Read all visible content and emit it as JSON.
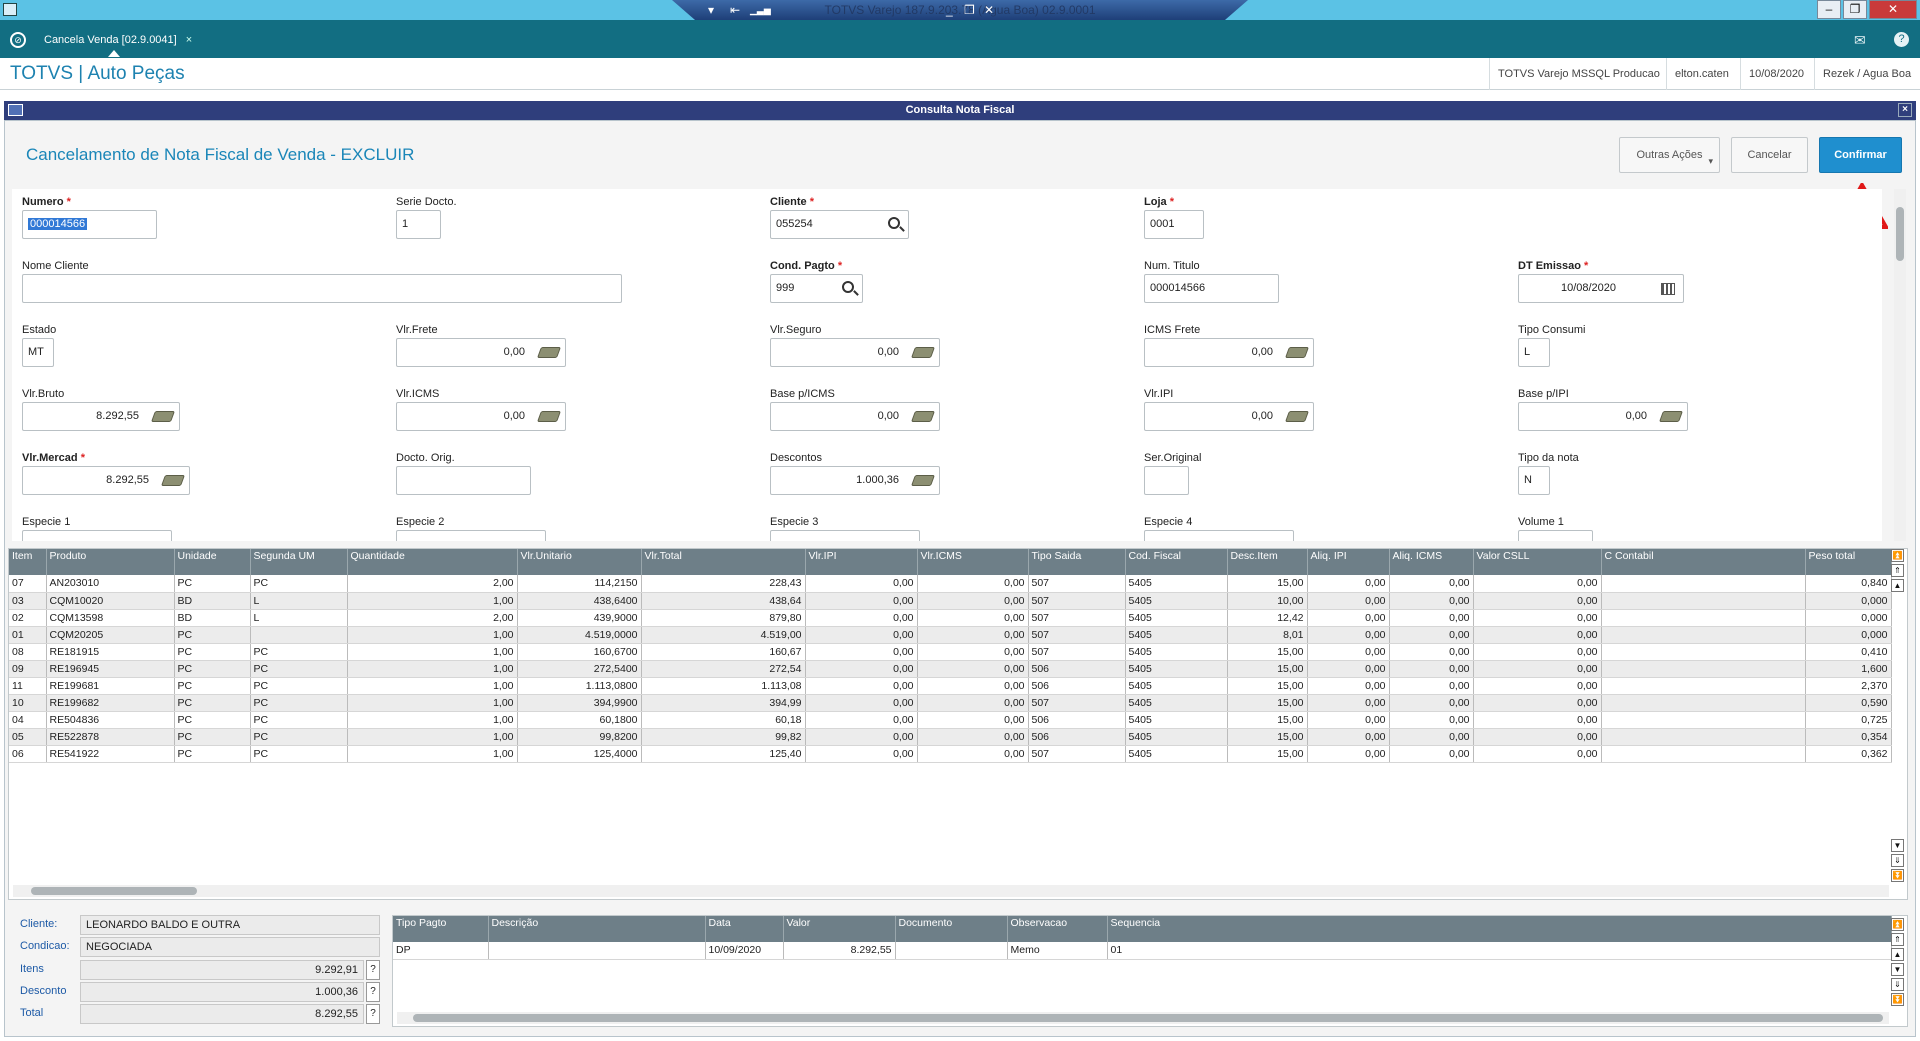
{
  "window": {
    "center_title": "TOTVS Varejo 187.9.203.78 (Agua Boa) 02.9.0001",
    "min_label": "_",
    "restore_label": "❐",
    "close_label": "✕",
    "right_min": "–",
    "right_restore": "❐",
    "right_close": "✕"
  },
  "tabbar": {
    "tab_label": "Cancela Venda [02.9.0041]",
    "tab_close": "×",
    "mail_icon": "✉",
    "help_icon": "?"
  },
  "header": {
    "app_title": "TOTVS | Auto Peças",
    "env": "TOTVS Varejo MSSQL Producao",
    "user": "elton.caten",
    "date": "10/08/2020",
    "branch": "Rezek / Agua Boa"
  },
  "dialog": {
    "title": "Consulta Nota Fiscal",
    "close": "×",
    "operation_title": "Cancelamento de Nota Fiscal de Venda - EXCLUIR",
    "btn_other": "Outras Ações",
    "btn_cancel": "Cancelar",
    "btn_confirm": "Confirmar"
  },
  "form": {
    "numero": {
      "label": "Numero",
      "value": "000014566"
    },
    "serie": {
      "label": "Serie Docto.",
      "value": "1"
    },
    "cliente": {
      "label": "Cliente",
      "value": "055254"
    },
    "loja": {
      "label": "Loja",
      "value": "0001"
    },
    "nome_cliente": {
      "label": "Nome Cliente",
      "value": ""
    },
    "cond_pagto": {
      "label": "Cond. Pagto",
      "value": "999"
    },
    "num_titulo": {
      "label": "Num. Titulo",
      "value": "000014566"
    },
    "dt_emissao": {
      "label": "DT Emissao",
      "value": "10/08/2020"
    },
    "estado": {
      "label": "Estado",
      "value": "MT"
    },
    "vlr_frete": {
      "label": "Vlr.Frete",
      "value": "0,00"
    },
    "vlr_seguro": {
      "label": "Vlr.Seguro",
      "value": "0,00"
    },
    "icms_frete": {
      "label": "ICMS Frete",
      "value": "0,00"
    },
    "tipo_consumi": {
      "label": "Tipo Consumi",
      "value": "L"
    },
    "vlr_bruto": {
      "label": "Vlr.Bruto",
      "value": "8.292,55"
    },
    "vlr_icms": {
      "label": "Vlr.ICMS",
      "value": "0,00"
    },
    "base_icms": {
      "label": "Base p/ICMS",
      "value": "0,00"
    },
    "vlr_ipi": {
      "label": "Vlr.IPI",
      "value": "0,00"
    },
    "base_ipi": {
      "label": "Base p/IPI",
      "value": "0,00"
    },
    "vlr_mercad": {
      "label": "Vlr.Mercad",
      "value": "8.292,55"
    },
    "docto_orig": {
      "label": "Docto. Orig.",
      "value": ""
    },
    "descontos": {
      "label": "Descontos",
      "value": "1.000,36"
    },
    "ser_original": {
      "label": "Ser.Original",
      "value": ""
    },
    "tipo_nota": {
      "label": "Tipo da nota",
      "value": "N"
    },
    "especie1": {
      "label": "Especie 1"
    },
    "especie2": {
      "label": "Especie 2"
    },
    "especie3": {
      "label": "Especie 3"
    },
    "especie4": {
      "label": "Especie 4"
    },
    "volume1": {
      "label": "Volume 1"
    }
  },
  "items_grid": {
    "columns": [
      "Item",
      "Produto",
      "Unidade",
      "Segunda UM",
      "Quantidade",
      "Vlr.Unitario",
      "Vlr.Total",
      "Vlr.IPI",
      "Vlr.ICMS",
      "Tipo Saida",
      "Cod. Fiscal",
      "Desc.Item",
      "Aliq. IPI",
      "Aliq. ICMS",
      "Valor CSLL",
      "C Contabil",
      "Peso total"
    ],
    "rows": [
      [
        "07",
        "AN203010",
        "PC",
        "PC",
        "2,00",
        "114,2150",
        "228,43",
        "0,00",
        "0,00",
        "507",
        "5405",
        "15,00",
        "0,00",
        "0,00",
        "0,00",
        "",
        "0,840"
      ],
      [
        "03",
        "CQM10020",
        "BD",
        "L",
        "1,00",
        "438,6400",
        "438,64",
        "0,00",
        "0,00",
        "507",
        "5405",
        "10,00",
        "0,00",
        "0,00",
        "0,00",
        "",
        "0,000"
      ],
      [
        "02",
        "CQM13598",
        "BD",
        "L",
        "2,00",
        "439,9000",
        "879,80",
        "0,00",
        "0,00",
        "507",
        "5405",
        "12,42",
        "0,00",
        "0,00",
        "0,00",
        "",
        "0,000"
      ],
      [
        "01",
        "CQM20205",
        "PC",
        "",
        "1,00",
        "4.519,0000",
        "4.519,00",
        "0,00",
        "0,00",
        "507",
        "5405",
        "8,01",
        "0,00",
        "0,00",
        "0,00",
        "",
        "0,000"
      ],
      [
        "08",
        "RE181915",
        "PC",
        "PC",
        "1,00",
        "160,6700",
        "160,67",
        "0,00",
        "0,00",
        "507",
        "5405",
        "15,00",
        "0,00",
        "0,00",
        "0,00",
        "",
        "0,410"
      ],
      [
        "09",
        "RE196945",
        "PC",
        "PC",
        "1,00",
        "272,5400",
        "272,54",
        "0,00",
        "0,00",
        "506",
        "5405",
        "15,00",
        "0,00",
        "0,00",
        "0,00",
        "",
        "1,600"
      ],
      [
        "11",
        "RE199681",
        "PC",
        "PC",
        "1,00",
        "1.113,0800",
        "1.113,08",
        "0,00",
        "0,00",
        "506",
        "5405",
        "15,00",
        "0,00",
        "0,00",
        "0,00",
        "",
        "2,370"
      ],
      [
        "10",
        "RE199682",
        "PC",
        "PC",
        "1,00",
        "394,9900",
        "394,99",
        "0,00",
        "0,00",
        "507",
        "5405",
        "15,00",
        "0,00",
        "0,00",
        "0,00",
        "",
        "0,590"
      ],
      [
        "04",
        "RE504836",
        "PC",
        "PC",
        "1,00",
        "60,1800",
        "60,18",
        "0,00",
        "0,00",
        "506",
        "5405",
        "15,00",
        "0,00",
        "0,00",
        "0,00",
        "",
        "0,725"
      ],
      [
        "05",
        "RE522878",
        "PC",
        "PC",
        "1,00",
        "99,8200",
        "99,82",
        "0,00",
        "0,00",
        "506",
        "5405",
        "15,00",
        "0,00",
        "0,00",
        "0,00",
        "",
        "0,354"
      ],
      [
        "06",
        "RE541922",
        "PC",
        "PC",
        "1,00",
        "125,4000",
        "125,40",
        "0,00",
        "0,00",
        "507",
        "5405",
        "15,00",
        "0,00",
        "0,00",
        "0,00",
        "",
        "0,362"
      ]
    ]
  },
  "summary": {
    "cliente_label": "Cliente:",
    "cliente_value": "LEONARDO BALDO E OUTRA",
    "condicao_label": "Condicao:",
    "condicao_value": "NEGOCIADA",
    "itens_label": "Itens",
    "itens_value": "9.292,91",
    "desconto_label": "Desconto",
    "desconto_value": "1.000,36",
    "total_label": "Total",
    "total_value": "8.292,55",
    "q": "?"
  },
  "payments_grid": {
    "columns": [
      "Tipo Pagto",
      "Descrição",
      "Data",
      "Valor",
      "Documento",
      "Observacao",
      "Sequencia"
    ],
    "rows": [
      [
        "DP",
        "",
        "10/09/2020",
        "8.292,55",
        "",
        "Memo",
        "01"
      ]
    ]
  },
  "colors": {
    "accent": "#1f8fcf",
    "tabbar": "#126e82",
    "grid_header": "#6e7f88",
    "annotation_arrow": "#e01818"
  }
}
